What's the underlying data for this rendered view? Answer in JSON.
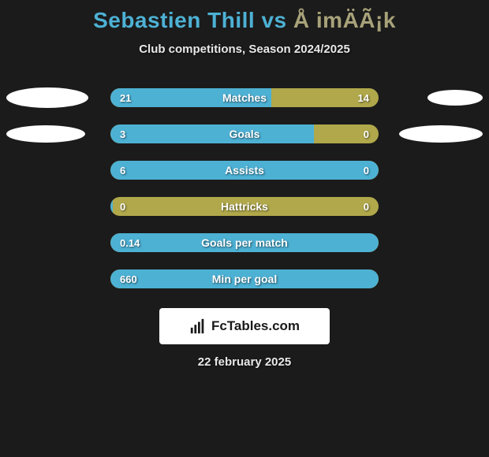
{
  "title": {
    "player1": "Sebastien Thill",
    "vs": "vs",
    "player2": "Å imÄÃ¡k"
  },
  "subtitle": "Club competitions, Season 2024/2025",
  "colors": {
    "background": "#1b1b1b",
    "player1": "#4db1d4",
    "player2": "#b0a84a",
    "ellipse": "#ffffff",
    "text": "#e8e8e8"
  },
  "ellipses": {
    "row0": {
      "left_w": 104,
      "left_h": 26,
      "right_w": 70,
      "right_h": 20
    },
    "row1": {
      "left_w": 100,
      "left_h": 22,
      "right_w": 106,
      "right_h": 22
    }
  },
  "stats": [
    {
      "label": "Matches",
      "left_val": "21",
      "right_val": "14",
      "left_pct": 60,
      "show_ellipses": true,
      "ellipse_key": "row0"
    },
    {
      "label": "Goals",
      "left_val": "3",
      "right_val": "0",
      "left_pct": 76,
      "show_ellipses": true,
      "ellipse_key": "row1"
    },
    {
      "label": "Assists",
      "left_val": "6",
      "right_val": "0",
      "left_pct": 100,
      "show_ellipses": false
    },
    {
      "label": "Hattricks",
      "left_val": "0",
      "right_val": "0",
      "left_pct": 1,
      "show_ellipses": false
    },
    {
      "label": "Goals per match",
      "left_val": "0.14",
      "right_val": "",
      "left_pct": 100,
      "show_ellipses": false
    },
    {
      "label": "Min per goal",
      "left_val": "660",
      "right_val": "",
      "left_pct": 100,
      "show_ellipses": false
    }
  ],
  "logo_text": "FcTables.com",
  "date": "22 february 2025"
}
